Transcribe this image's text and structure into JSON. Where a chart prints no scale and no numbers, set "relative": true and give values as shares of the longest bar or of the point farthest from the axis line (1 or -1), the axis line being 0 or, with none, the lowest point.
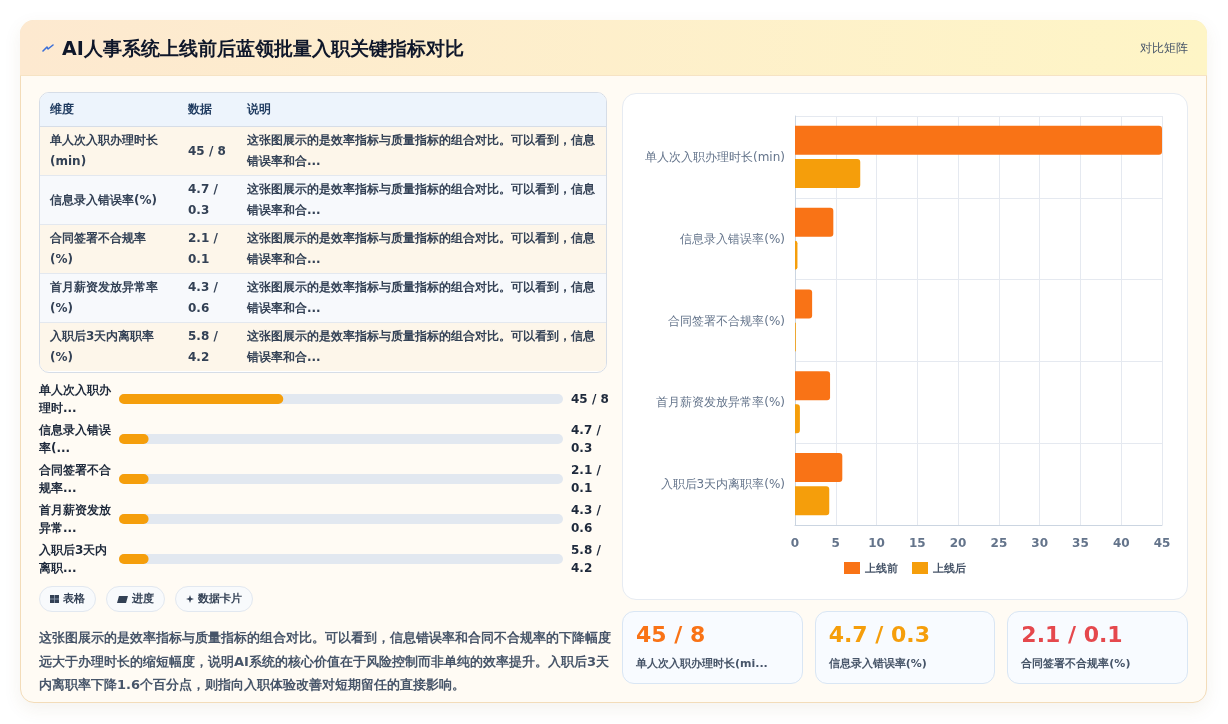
{
  "chart_data": [
    {
      "type": "other",
      "title": "AI人事系统上线前后蓝领批量入职关键指标对比",
      "annotations": [
        "对比矩阵"
      ]
    },
    {
      "type": "other",
      "categories": [
        "维度",
        "数据",
        "说明"
      ],
      "cell_labels": [
        [
          "单人次入职办理时长(min)",
          "45 / 8",
          "这张图展示的是效率指标与质量指标的组合对比。可以看到，信息错误率和合..."
        ],
        [
          "信息录入错误率(%)",
          "4.7 / 0.3",
          "这张图展示的是效率指标与质量指标的组合对比。可以看到，信息错误率和合..."
        ],
        [
          "合同签署不合规率(%)",
          "2.1 / 0.1",
          "这张图展示的是效率指标与质量指标的组合对比。可以看到，信息错误率和合..."
        ],
        [
          "首月薪资发放异常率(%)",
          "4.3 / 0.6",
          "这张图展示的是效率指标与质量指标的组合对比。可以看到，信息错误率和合..."
        ],
        [
          "入职后3天内离职率(%)",
          "5.8 / 4.2",
          "这张图展示的是效率指标与质量指标的组合对比。可以看到，信息错误率和合..."
        ]
      ]
    },
    {
      "type": "bar",
      "orientation": "horizontal",
      "relative": true,
      "categories": [
        "单人次入职办理时...",
        "信息录入错误率(...",
        "合同签署不合规率...",
        "首月薪资发放异常...",
        "入职后3天内离职..."
      ],
      "y2_categories": [
        "45 / 8",
        "4.7 / 0.3",
        "2.1 / 0.1",
        "4.3 / 0.6",
        "5.8 / 4.2"
      ],
      "values": [
        1,
        0.18,
        0.18,
        0.18,
        0.18
      ],
      "color": "#f59e0b"
    },
    {
      "type": "other",
      "categories": [
        "表格",
        "进度",
        "数据卡片"
      ],
      "annotations": [
        "这张图展示的是效率指标与质量指标的组合对比。可以看到，信息错误率和合同不合规率的下降幅度远大于办理时长的缩短幅度，说明AI系统的核心价值在于风险控制而非单纯的效率提升。入职后3天内离职率下降1.6个百分点，则指向入职体验改善对短期留任的直接影响。"
      ]
    },
    {
      "type": "bar",
      "orientation": "horizontal",
      "categories": [
        "单人次入职办理时长(min)",
        "信息录入错误率(%)",
        "合同签署不合规率(%)",
        "首月薪资发放异常率(%)",
        "入职后3天内离职率(%)"
      ],
      "series": [
        {
          "name": "上线前",
          "color": "#f97316",
          "values": [
            45,
            4.7,
            2.1,
            4.3,
            5.8
          ]
        },
        {
          "name": "上线后",
          "color": "#f59e0b",
          "values": [
            8,
            0.3,
            0.1,
            0.6,
            4.2
          ]
        }
      ],
      "xlim": [
        0,
        45
      ],
      "xticks": [
        0,
        5,
        10,
        15,
        20,
        25,
        30,
        35,
        40,
        45
      ],
      "grid": true,
      "legend": "bottom"
    },
    {
      "type": "other",
      "categories": [
        "单人次入职办理时长(mi...",
        "信息录入错误率(%)",
        "合同签署不合规率(%)"
      ],
      "value_labels": [
        "45 / 8",
        "4.7 / 0.3",
        "2.1 / 0.1"
      ]
    }
  ]
}
